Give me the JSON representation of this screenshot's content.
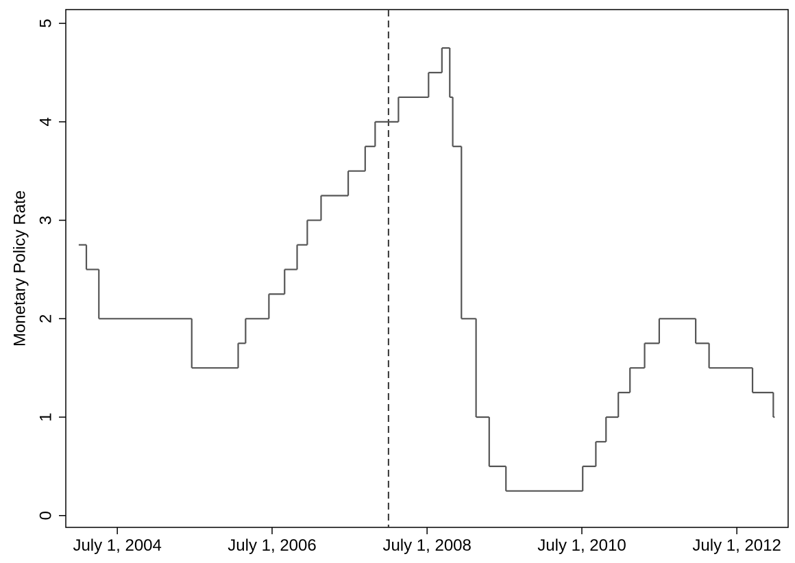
{
  "chart_data": {
    "type": "line",
    "step": "post",
    "ylabel": "Monetary Policy Rate",
    "x": [
      "2004-01-01",
      "2004-02-06",
      "2004-04-05",
      "2005-06-17",
      "2006-01-22",
      "2006-02-26",
      "2006-06-16",
      "2006-08-29",
      "2006-10-27",
      "2006-12-14",
      "2007-02-17",
      "2007-06-25",
      "2007-09-13",
      "2007-10-30",
      "2008-02-17",
      "2008-07-08",
      "2008-09-09",
      "2008-10-16",
      "2008-10-30",
      "2008-12-10",
      "2009-02-17",
      "2009-04-20",
      "2009-07-08",
      "2010-07-05",
      "2010-09-05",
      "2010-10-23",
      "2010-12-20",
      "2011-02-13",
      "2011-04-23",
      "2011-07-01",
      "2011-12-20",
      "2012-02-21",
      "2012-09-13",
      "2012-12-20"
    ],
    "values": [
      2.75,
      2.5,
      2.0,
      1.5,
      1.75,
      2.0,
      2.25,
      2.5,
      2.75,
      3.0,
      3.25,
      3.5,
      3.75,
      4.0,
      4.25,
      4.5,
      4.75,
      4.25,
      3.75,
      2.0,
      1.0,
      0.5,
      0.25,
      0.5,
      0.75,
      1.0,
      1.25,
      1.5,
      1.75,
      2.0,
      1.75,
      1.5,
      1.25,
      1.0
    ],
    "color": "#555555",
    "vline": "2008-01-01",
    "xlim": [
      "2003-11-01",
      "2013-02-28"
    ],
    "xticks": [
      {
        "value": "2004-07-01",
        "label": "July 1, 2004"
      },
      {
        "value": "2006-07-01",
        "label": "July 1, 2006"
      },
      {
        "value": "2008-07-01",
        "label": "July 1, 2008"
      },
      {
        "value": "2010-07-01",
        "label": "July 1, 2010"
      },
      {
        "value": "2012-07-01",
        "label": "July 1, 2012"
      }
    ],
    "ylim": [
      -0.12,
      5.14
    ],
    "yticks": [
      0,
      1,
      2,
      3,
      4,
      5
    ]
  }
}
